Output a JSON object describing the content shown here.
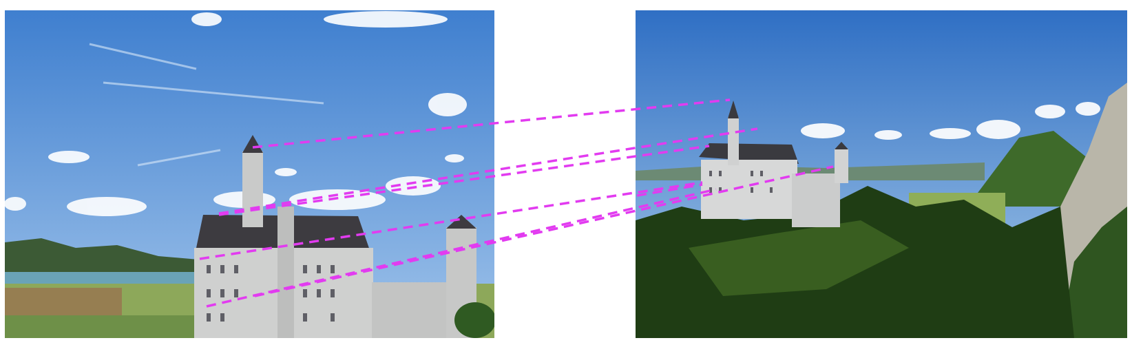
{
  "scene": {
    "left_photo": {
      "subject": "castle",
      "sky_top": "#3f7fcf",
      "sky_bottom": "#9fc3ea",
      "lake": "#6aa3b7",
      "field": "#8da85a",
      "castle_wall": "#cfd0cf",
      "roof": "#3d3b40"
    },
    "right_photo": {
      "subject": "castle",
      "sky_top": "#2f6fc4",
      "sky_bottom": "#a9cbe9",
      "forest_dark": "#1f3d14",
      "forest_light": "#4f7a2a",
      "cliff": "#b9b6a9",
      "castle_wall": "#d7d8d8",
      "roof": "#3a3a3f"
    },
    "match_lines": {
      "color": "#e23bf0",
      "count": 7
    }
  }
}
